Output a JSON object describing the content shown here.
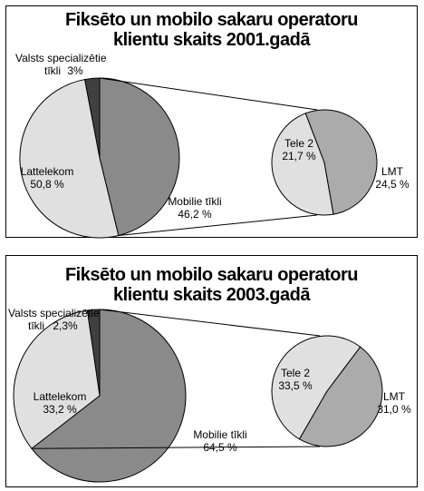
{
  "chart_data": [
    {
      "type": "pie",
      "title_line1": "Fiksēto un mobilo sakaru operatoru",
      "title_line2": "klientu skaits 2001.gadā",
      "main_pie": {
        "slices": [
          {
            "name_line1": "Valsts specializētie",
            "name_line2": "tīkli",
            "value": 3,
            "value_label": "3%",
            "color": "#404040"
          },
          {
            "name_line1": "Mobilie tīkli",
            "name_line2": "",
            "value": 46.2,
            "value_label": "46,2 %",
            "color": "#8a8a8a"
          },
          {
            "name_line1": "Lattelekom",
            "name_line2": "",
            "value": 50.8,
            "value_label": "50,8 %",
            "color": "#e0e0e0"
          }
        ]
      },
      "breakdown_pie": {
        "of": "Mobilie tīkli",
        "slices": [
          {
            "name": "Tele 2",
            "value": 21.7,
            "value_label": "21,7 %",
            "color": "#e0e0e0"
          },
          {
            "name": "LMT",
            "value": 24.5,
            "value_label": "24,5 %",
            "color": "#ababab"
          }
        ]
      }
    },
    {
      "type": "pie",
      "title_line1": "Fiksēto un mobilo sakaru operatoru",
      "title_line2": "klientu skaits 2003.gadā",
      "main_pie": {
        "slices": [
          {
            "name_line1": "Valsts specializētie",
            "name_line2": "tīkli",
            "value": 2.3,
            "value_label": "2,3%",
            "color": "#404040"
          },
          {
            "name_line1": "Mobilie tīkli",
            "name_line2": "",
            "value": 64.5,
            "value_label": "64,5 %",
            "color": "#8a8a8a"
          },
          {
            "name_line1": "Lattelekom",
            "name_line2": "",
            "value": 33.2,
            "value_label": "33,2 %",
            "color": "#e0e0e0"
          }
        ]
      },
      "breakdown_pie": {
        "of": "Mobilie tīkli",
        "slices": [
          {
            "name": "Tele 2",
            "value": 33.5,
            "value_label": "33,5 %",
            "color": "#e0e0e0"
          },
          {
            "name": "LMT",
            "value": 31.0,
            "value_label": "31,0 %",
            "color": "#ababab"
          }
        ]
      }
    }
  ]
}
